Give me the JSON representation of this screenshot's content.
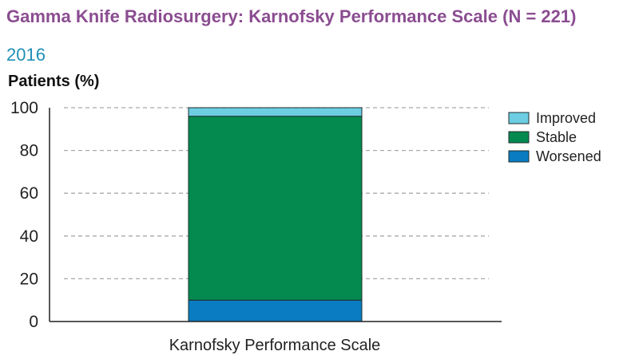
{
  "page": {
    "title": "Gamma Knife Radiosurgery: Karnofsky Performance Scale (N = 221)",
    "subtitle": "2016",
    "title_color": "#8b4d91",
    "subtitle_color": "#1f8fb8"
  },
  "chart_data": {
    "type": "bar",
    "stacked": true,
    "title": "Gamma Knife Radiosurgery: Karnofsky Performance Scale (N = 221)",
    "subtitle": "2016",
    "xlabel": "Karnofsky Performance Scale",
    "ylabel": "Patients (%)",
    "ylim": [
      0,
      100
    ],
    "yticks": [
      0,
      20,
      40,
      60,
      80,
      100
    ],
    "categories": [
      "Karnofsky Performance Scale"
    ],
    "series": [
      {
        "name": "Worsened",
        "values": [
          10
        ],
        "color": "#0a7cc1"
      },
      {
        "name": "Stable",
        "values": [
          86
        ],
        "color": "#048a4f"
      },
      {
        "name": "Improved",
        "values": [
          4
        ],
        "color": "#6ccde3"
      }
    ],
    "legend_order": [
      "Improved",
      "Stable",
      "Worsened"
    ],
    "legend_position": "right",
    "grid": true,
    "grid_style": "dashed horizontal"
  }
}
